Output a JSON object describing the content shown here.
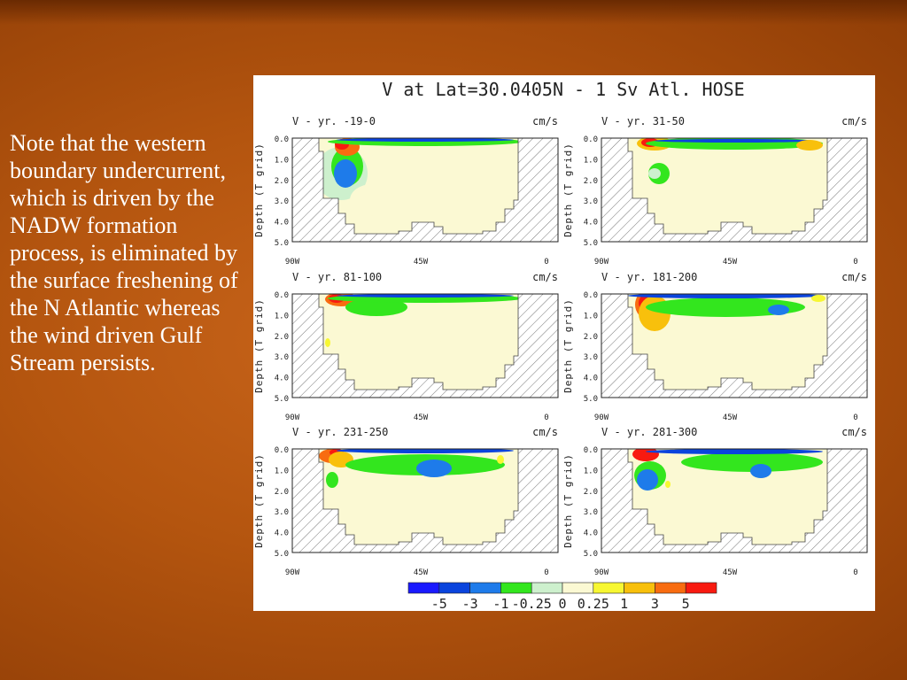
{
  "slide": {
    "caption": "Note that the western boundary undercurrent, which is driven by the NADW formation process, is eliminated by the surface freshening of the N Atlantic whereas the wind driven Gulf Stream persists."
  },
  "figure": {
    "title": "V at Lat=30.0405N - 1 Sv Atl. HOSE",
    "units": "cm/s",
    "ylabel": "Depth (T grid)",
    "yticks": [
      "0.0",
      "1.0",
      "2.0",
      "3.0",
      "4.0",
      "5.0"
    ],
    "xticks": [
      "90W",
      "45W",
      "0"
    ],
    "panels": [
      {
        "label": "V - yr. -19-0"
      },
      {
        "label": "V - yr. 31-50"
      },
      {
        "label": "V - yr. 81-100"
      },
      {
        "label": "V - yr. 181-200"
      },
      {
        "label": "V - yr. 231-250"
      },
      {
        "label": "V - yr. 281-300"
      }
    ],
    "colorbar": {
      "colors": [
        "#1a1aff",
        "#0a44dd",
        "#1e7bea",
        "#33e61e",
        "#cdf0cd",
        "#fbf9d3",
        "#f7f732",
        "#f8c00c",
        "#f86c10",
        "#f81a10"
      ],
      "labels": [
        "-5",
        "-3",
        "-1",
        "-0.25",
        "0",
        "0.25",
        "1",
        "3",
        "5"
      ]
    }
  }
}
